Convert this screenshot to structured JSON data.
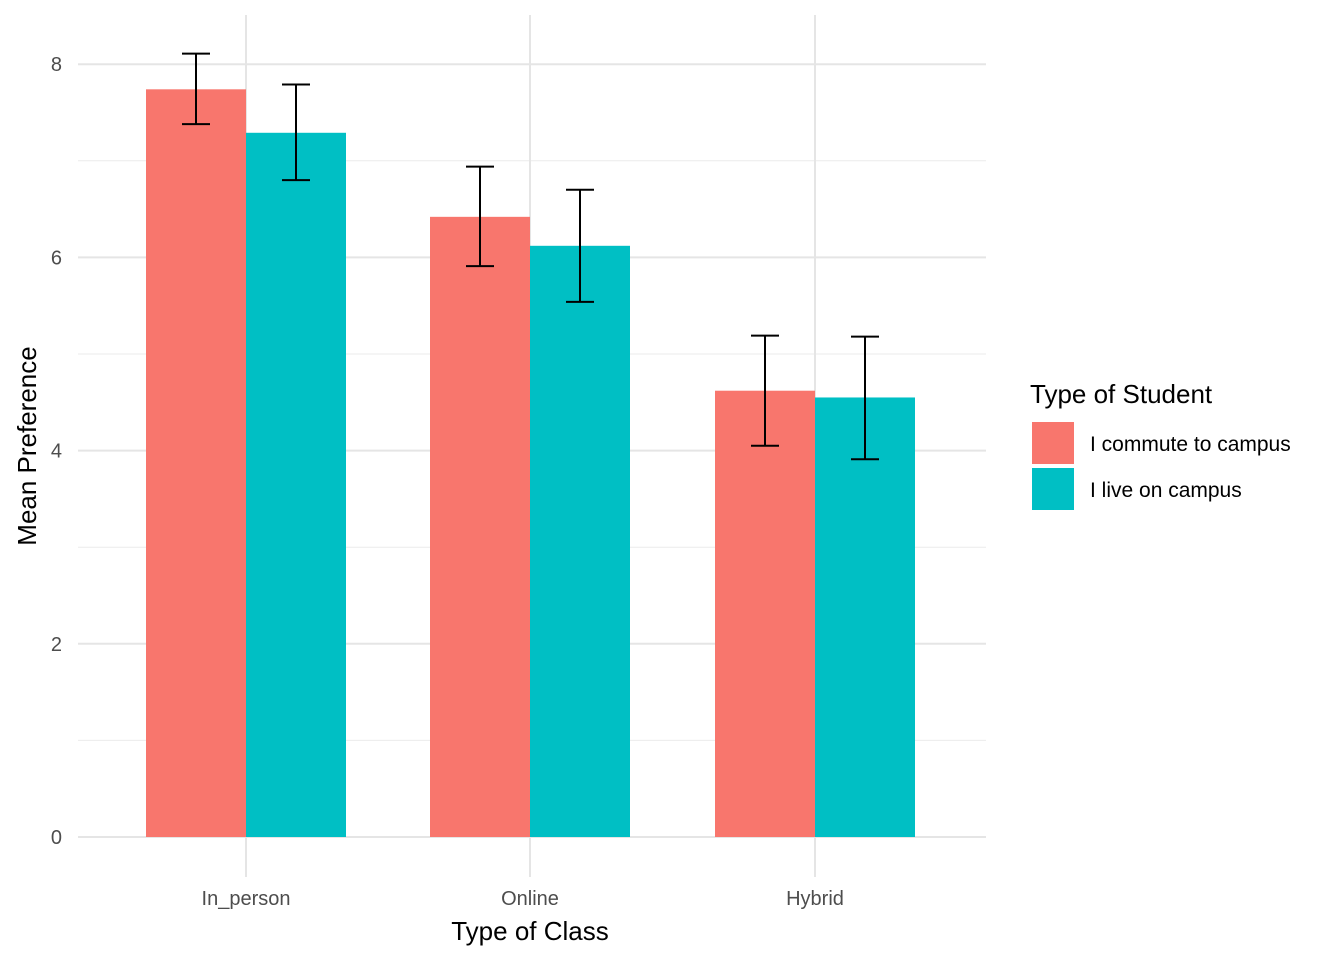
{
  "chart_data": {
    "type": "bar",
    "title": "",
    "xlabel": "Type of Class",
    "ylabel": "Mean Preference",
    "categories": [
      "In_person",
      "Online",
      "Hybrid"
    ],
    "ylim": [
      0,
      8.4
    ],
    "y_ticks": [
      "0",
      "2",
      "4",
      "6",
      "8"
    ],
    "grid": true,
    "error_bars": true,
    "legend": {
      "title": "Type of Student",
      "placement": "right"
    },
    "series": [
      {
        "name": "I commute to campus",
        "color": "#F8766D",
        "values": [
          7.74,
          6.42,
          4.62
        ],
        "err_low": [
          7.38,
          5.91,
          4.05
        ],
        "err_high": [
          8.11,
          6.94,
          5.19
        ]
      },
      {
        "name": "I live on campus",
        "color": "#00BFC4",
        "values": [
          7.29,
          6.12,
          4.55
        ],
        "err_low": [
          6.8,
          5.54,
          3.91
        ],
        "err_high": [
          7.79,
          6.7,
          5.18
        ]
      }
    ]
  }
}
